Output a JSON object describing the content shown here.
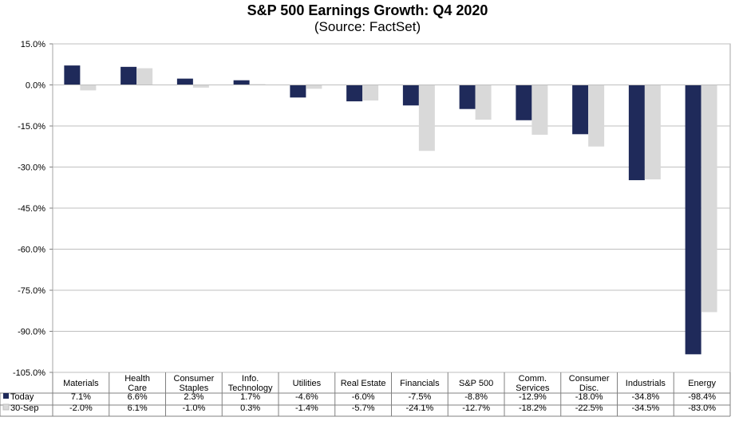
{
  "chart_data": {
    "type": "bar",
    "title": "S&P 500 Earnings Growth: Q4 2020",
    "subtitle": "(Source: FactSet)",
    "categories": [
      [
        "Materials"
      ],
      [
        "Health",
        "Care"
      ],
      [
        "Consumer",
        "Staples"
      ],
      [
        "Info.",
        "Technology"
      ],
      [
        "Utilities"
      ],
      [
        "Real Estate"
      ],
      [
        "Financials"
      ],
      [
        "S&P 500"
      ],
      [
        "Comm.",
        "Services"
      ],
      [
        "Consumer",
        "Disc."
      ],
      [
        "Industrials"
      ],
      [
        "Energy"
      ]
    ],
    "series": [
      {
        "name": "Today",
        "color": "#1f2a5a",
        "values": [
          7.1,
          6.6,
          2.3,
          1.7,
          -4.6,
          -6.0,
          -7.5,
          -8.8,
          -12.9,
          -18.0,
          -34.8,
          -98.4
        ],
        "labels": [
          "7.1%",
          "6.6%",
          "2.3%",
          "1.7%",
          "-4.6%",
          "-6.0%",
          "-7.5%",
          "-8.8%",
          "-12.9%",
          "-18.0%",
          "-34.8%",
          "-98.4%"
        ]
      },
      {
        "name": "30-Sep",
        "color": "#d9d9d9",
        "values": [
          -2.0,
          6.1,
          -1.0,
          0.3,
          -1.4,
          -5.7,
          -24.1,
          -12.7,
          -18.2,
          -22.5,
          -34.5,
          -83.0
        ],
        "labels": [
          "-2.0%",
          "6.1%",
          "-1.0%",
          "0.3%",
          "-1.4%",
          "-5.7%",
          "-24.1%",
          "-12.7%",
          "-18.2%",
          "-22.5%",
          "-34.5%",
          "-83.0%"
        ]
      }
    ],
    "yticks": [
      "15.0%",
      "0.0%",
      "-15.0%",
      "-30.0%",
      "-45.0%",
      "-60.0%",
      "-75.0%",
      "-90.0%",
      "-105.0%"
    ],
    "ylim": [
      -105,
      15
    ],
    "grid": true,
    "legend": "data table below chart"
  }
}
